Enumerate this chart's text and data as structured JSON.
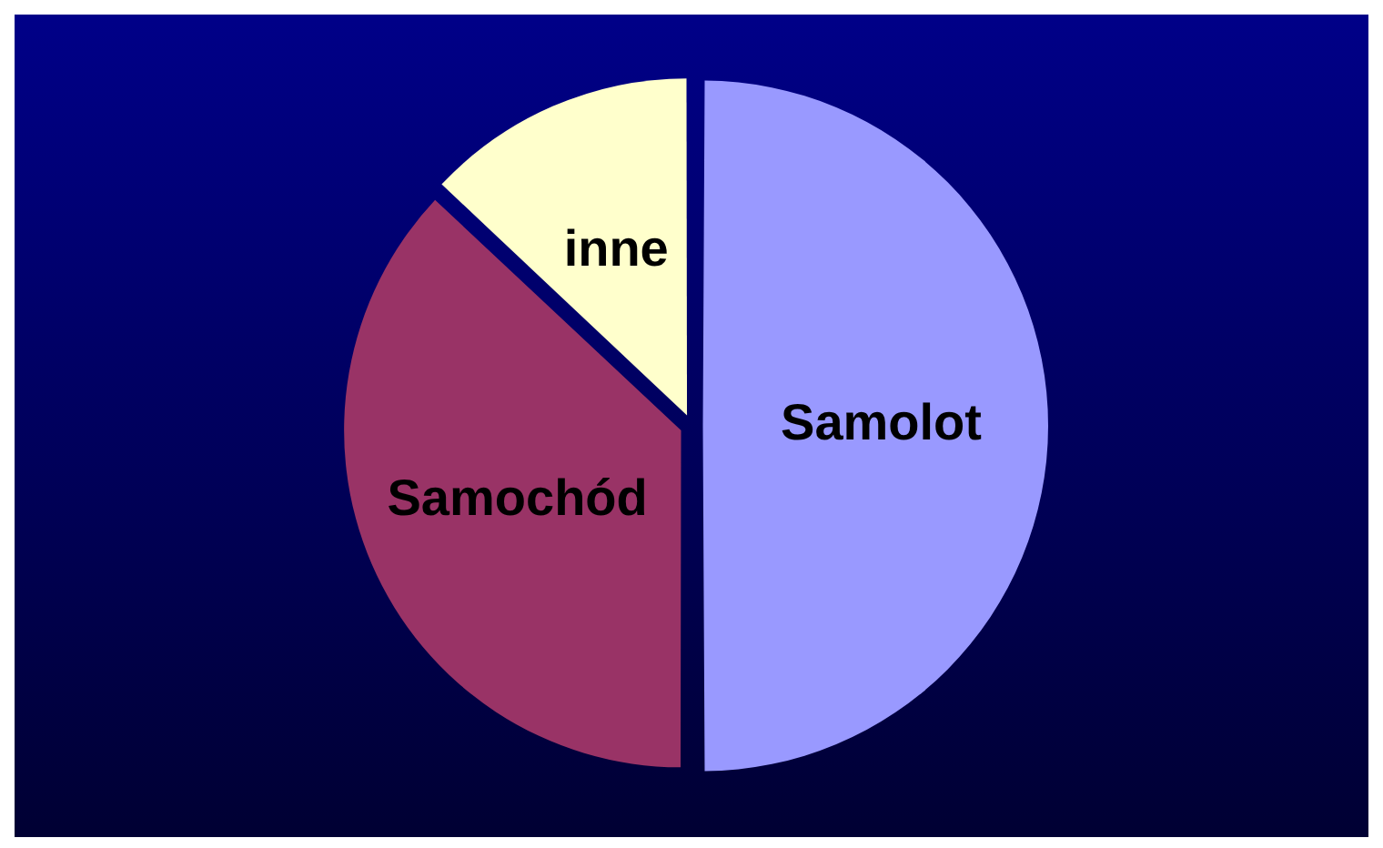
{
  "chart_data": {
    "type": "pie",
    "categories": [
      "Samolot",
      "Samochód",
      "inne"
    ],
    "values": [
      50,
      37,
      13
    ],
    "colors": [
      "#9999ff",
      "#993366",
      "#ffffcc"
    ],
    "legend": false
  }
}
